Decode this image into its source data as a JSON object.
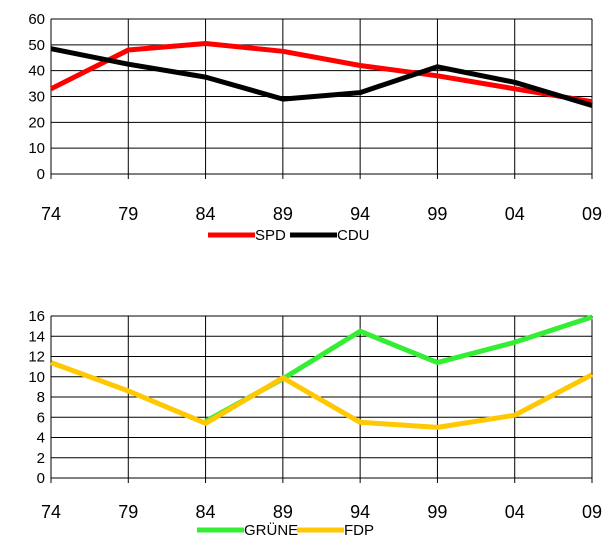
{
  "chart_data": [
    {
      "type": "line",
      "categories": [
        "74",
        "79",
        "84",
        "89",
        "94",
        "99",
        "04",
        "09"
      ],
      "ylim": [
        0,
        60
      ],
      "yticks": [
        0,
        10,
        20,
        30,
        40,
        50,
        60
      ],
      "grid": true,
      "legend_position": "bottom",
      "series": [
        {
          "name": "SPD",
          "color": "#ff0000",
          "values": [
            33,
            48,
            50.5,
            47.5,
            42,
            38,
            33,
            28
          ]
        },
        {
          "name": "CDU",
          "color": "#000000",
          "values": [
            48.5,
            42.5,
            37.5,
            29,
            31.5,
            41.5,
            35.5,
            26.5
          ]
        }
      ]
    },
    {
      "type": "line",
      "categories": [
        "74",
        "79",
        "84",
        "89",
        "94",
        "99",
        "04",
        "09"
      ],
      "ylim": [
        0,
        16
      ],
      "yticks": [
        0,
        2,
        4,
        6,
        8,
        10,
        12,
        14,
        16
      ],
      "grid": true,
      "legend_position": "bottom",
      "series": [
        {
          "name": "GRÜNE",
          "color": "#33ee33",
          "values": [
            null,
            null,
            5.6,
            9.8,
            14.5,
            11.4,
            13.4,
            15.9
          ]
        },
        {
          "name": "FDP",
          "color": "#ffc800",
          "values": [
            11.4,
            8.6,
            5.4,
            9.9,
            5.5,
            5,
            6.2,
            10.2
          ]
        }
      ]
    }
  ]
}
